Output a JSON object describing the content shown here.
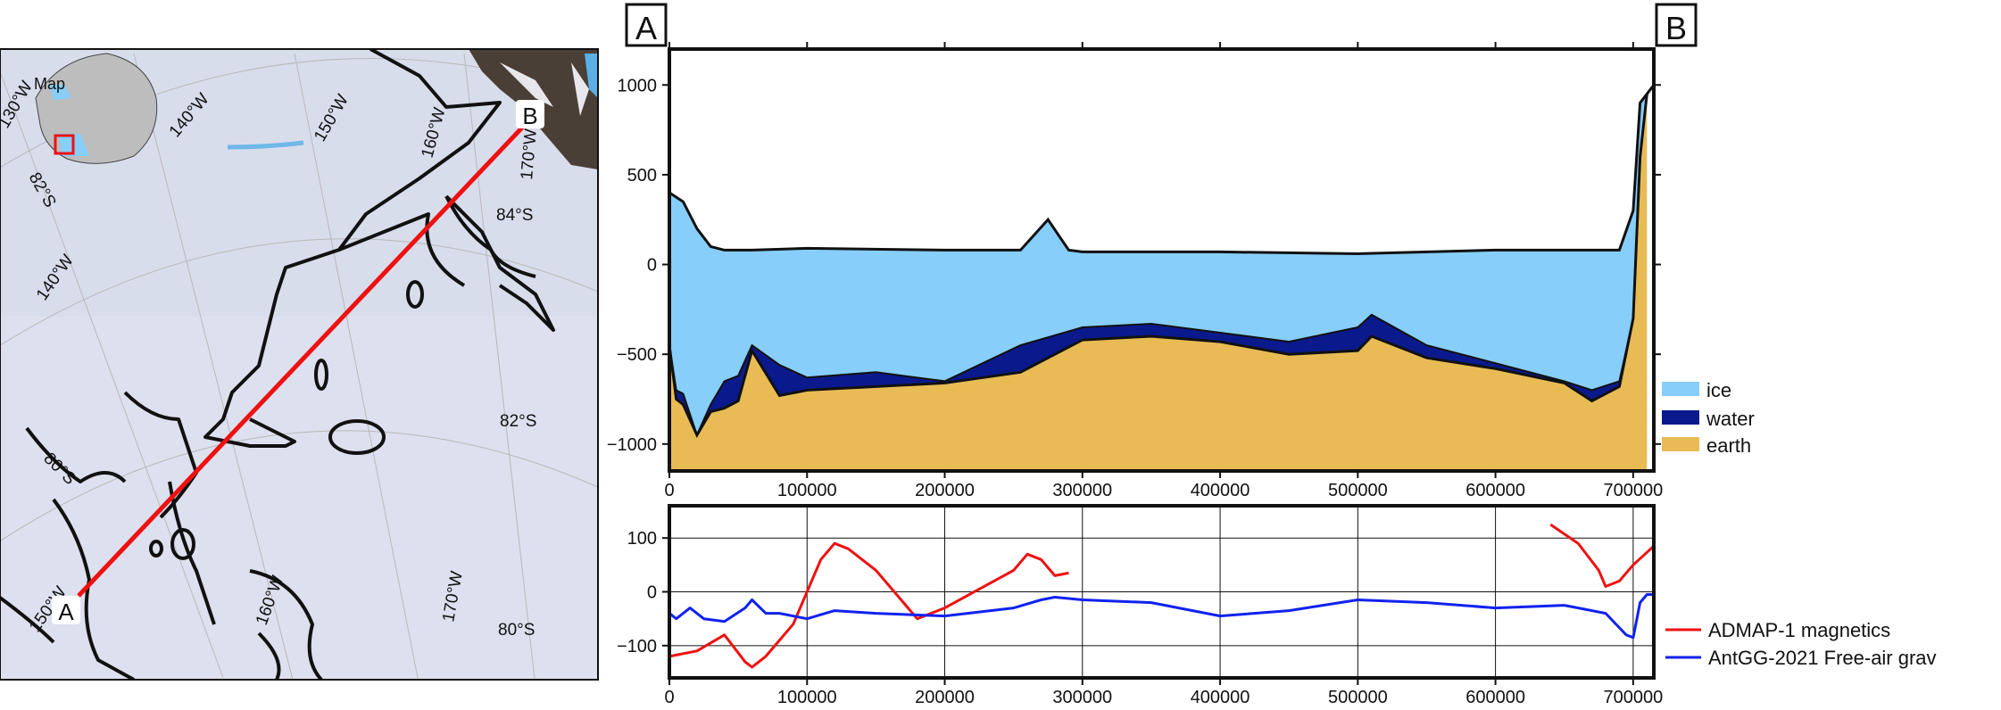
{
  "map": {
    "ticks_top": [
      "130°W",
      "140°W",
      "150°W",
      "160°W",
      "170°W"
    ],
    "lat_labels": [
      "82°S",
      "80°S",
      "84°S",
      "82°S",
      "80°S"
    ],
    "lon_labels": [
      "140°W",
      "150°W",
      "160°W",
      "170°W"
    ],
    "inset_label": "Map",
    "profile_start": "A",
    "profile_end": "B",
    "colors": {
      "profile_line": "#ee1111",
      "coast": "#111111",
      "inset_box": "#ee1111"
    }
  },
  "chart_data": [
    {
      "type": "area",
      "title": "",
      "start_label": "A",
      "end_label": "B",
      "xlim": [
        0,
        715000
      ],
      "ylim": [
        -1150,
        1200
      ],
      "xticks": [
        0,
        100000,
        200000,
        300000,
        400000,
        500000,
        600000,
        700000
      ],
      "xtick_labels": [
        "0",
        "100000",
        "200000",
        "300000",
        "400000",
        "500000",
        "600000",
        "700000"
      ],
      "yticks": [
        -1000,
        -500,
        0,
        500,
        1000
      ],
      "ytick_labels": [
        "−1000",
        "−500",
        "0",
        "500",
        "1000"
      ],
      "legend_position": "right",
      "series": [
        {
          "name": "ice",
          "color": "#87cefa"
        },
        {
          "name": "water",
          "color": "#0a1a8c"
        },
        {
          "name": "earth",
          "color": "#e8bb55"
        }
      ],
      "surface": {
        "x": [
          0,
          10000,
          20000,
          30000,
          40000,
          60000,
          100000,
          200000,
          255000,
          275000,
          290000,
          300000,
          400000,
          500000,
          600000,
          690000,
          700000,
          705000,
          710000,
          715000
        ],
        "y": [
          400,
          350,
          200,
          100,
          80,
          80,
          90,
          80,
          80,
          250,
          80,
          70,
          70,
          60,
          80,
          80,
          300,
          900,
          950,
          1000
        ]
      },
      "icebase": {
        "x": [
          0,
          5000,
          10000,
          20000,
          30000,
          40000,
          50000,
          60000,
          80000,
          100000,
          150000,
          200000,
          255000,
          300000,
          350000,
          400000,
          450000,
          500000,
          510000,
          550000,
          600000,
          650000,
          670000,
          690000,
          700000,
          705000,
          710000
        ],
        "y": [
          -450,
          -700,
          -720,
          -950,
          -780,
          -650,
          -620,
          -450,
          -560,
          -630,
          -600,
          -650,
          -450,
          -350,
          -330,
          -380,
          -430,
          -350,
          -280,
          -450,
          -550,
          -650,
          -700,
          -650,
          -300,
          600,
          950
        ]
      },
      "bed": {
        "x": [
          0,
          5000,
          10000,
          20000,
          30000,
          40000,
          50000,
          60000,
          80000,
          100000,
          150000,
          200000,
          255000,
          300000,
          350000,
          400000,
          450000,
          500000,
          510000,
          550000,
          600000,
          650000,
          670000,
          690000,
          700000,
          705000,
          710000
        ],
        "y": [
          -450,
          -750,
          -780,
          -950,
          -820,
          -800,
          -760,
          -480,
          -730,
          -700,
          -680,
          -660,
          -600,
          -420,
          -400,
          -430,
          -500,
          -480,
          -400,
          -520,
          -580,
          -660,
          -760,
          -680,
          -300,
          600,
          950
        ]
      }
    },
    {
      "type": "line",
      "title": "",
      "xlim": [
        0,
        715000
      ],
      "ylim": [
        -160,
        160
      ],
      "xticks": [
        0,
        100000,
        200000,
        300000,
        400000,
        500000,
        600000,
        700000
      ],
      "xtick_labels": [
        "0",
        "100000",
        "200000",
        "300000",
        "400000",
        "500000",
        "600000",
        "700000"
      ],
      "yticks": [
        -100,
        0,
        100
      ],
      "ytick_labels": [
        "−100",
        "0",
        "100"
      ],
      "grid": true,
      "legend_position": "right",
      "series": [
        {
          "name": "ADMAP-1 magnetics",
          "color": "#ee1111",
          "segments": [
            {
              "x": [
                0,
                20000,
                40000,
                55000,
                60000,
                70000,
                90000,
                110000,
                120000,
                130000,
                150000,
                170000,
                180000,
                200000,
                250000,
                260000,
                270000,
                280000,
                290000
              ],
              "y": [
                -120,
                -110,
                -80,
                -130,
                -140,
                -120,
                -60,
                60,
                90,
                80,
                40,
                -20,
                -50,
                -30,
                40,
                70,
                60,
                30,
                35
              ]
            },
            {
              "x": [
                640000,
                660000,
                675000,
                680000,
                690000,
                700000,
                715000
              ],
              "y": [
                125,
                90,
                40,
                10,
                20,
                50,
                85
              ]
            }
          ]
        },
        {
          "name": "AntGG-2021 Free-air grav",
          "color": "#1122ee",
          "segments": [
            {
              "x": [
                0,
                5000,
                15000,
                25000,
                40000,
                55000,
                60000,
                70000,
                80000,
                100000,
                120000,
                150000,
                200000,
                250000,
                270000,
                280000,
                300000,
                350000,
                400000,
                450000,
                500000,
                550000,
                600000,
                650000,
                680000,
                695000,
                700000,
                705000,
                710000,
                715000
              ],
              "y": [
                -40,
                -50,
                -30,
                -50,
                -55,
                -30,
                -15,
                -40,
                -40,
                -50,
                -35,
                -40,
                -45,
                -30,
                -15,
                -10,
                -15,
                -20,
                -45,
                -35,
                -15,
                -20,
                -30,
                -25,
                -40,
                -80,
                -85,
                -20,
                -5,
                -5
              ]
            }
          ]
        }
      ]
    }
  ]
}
